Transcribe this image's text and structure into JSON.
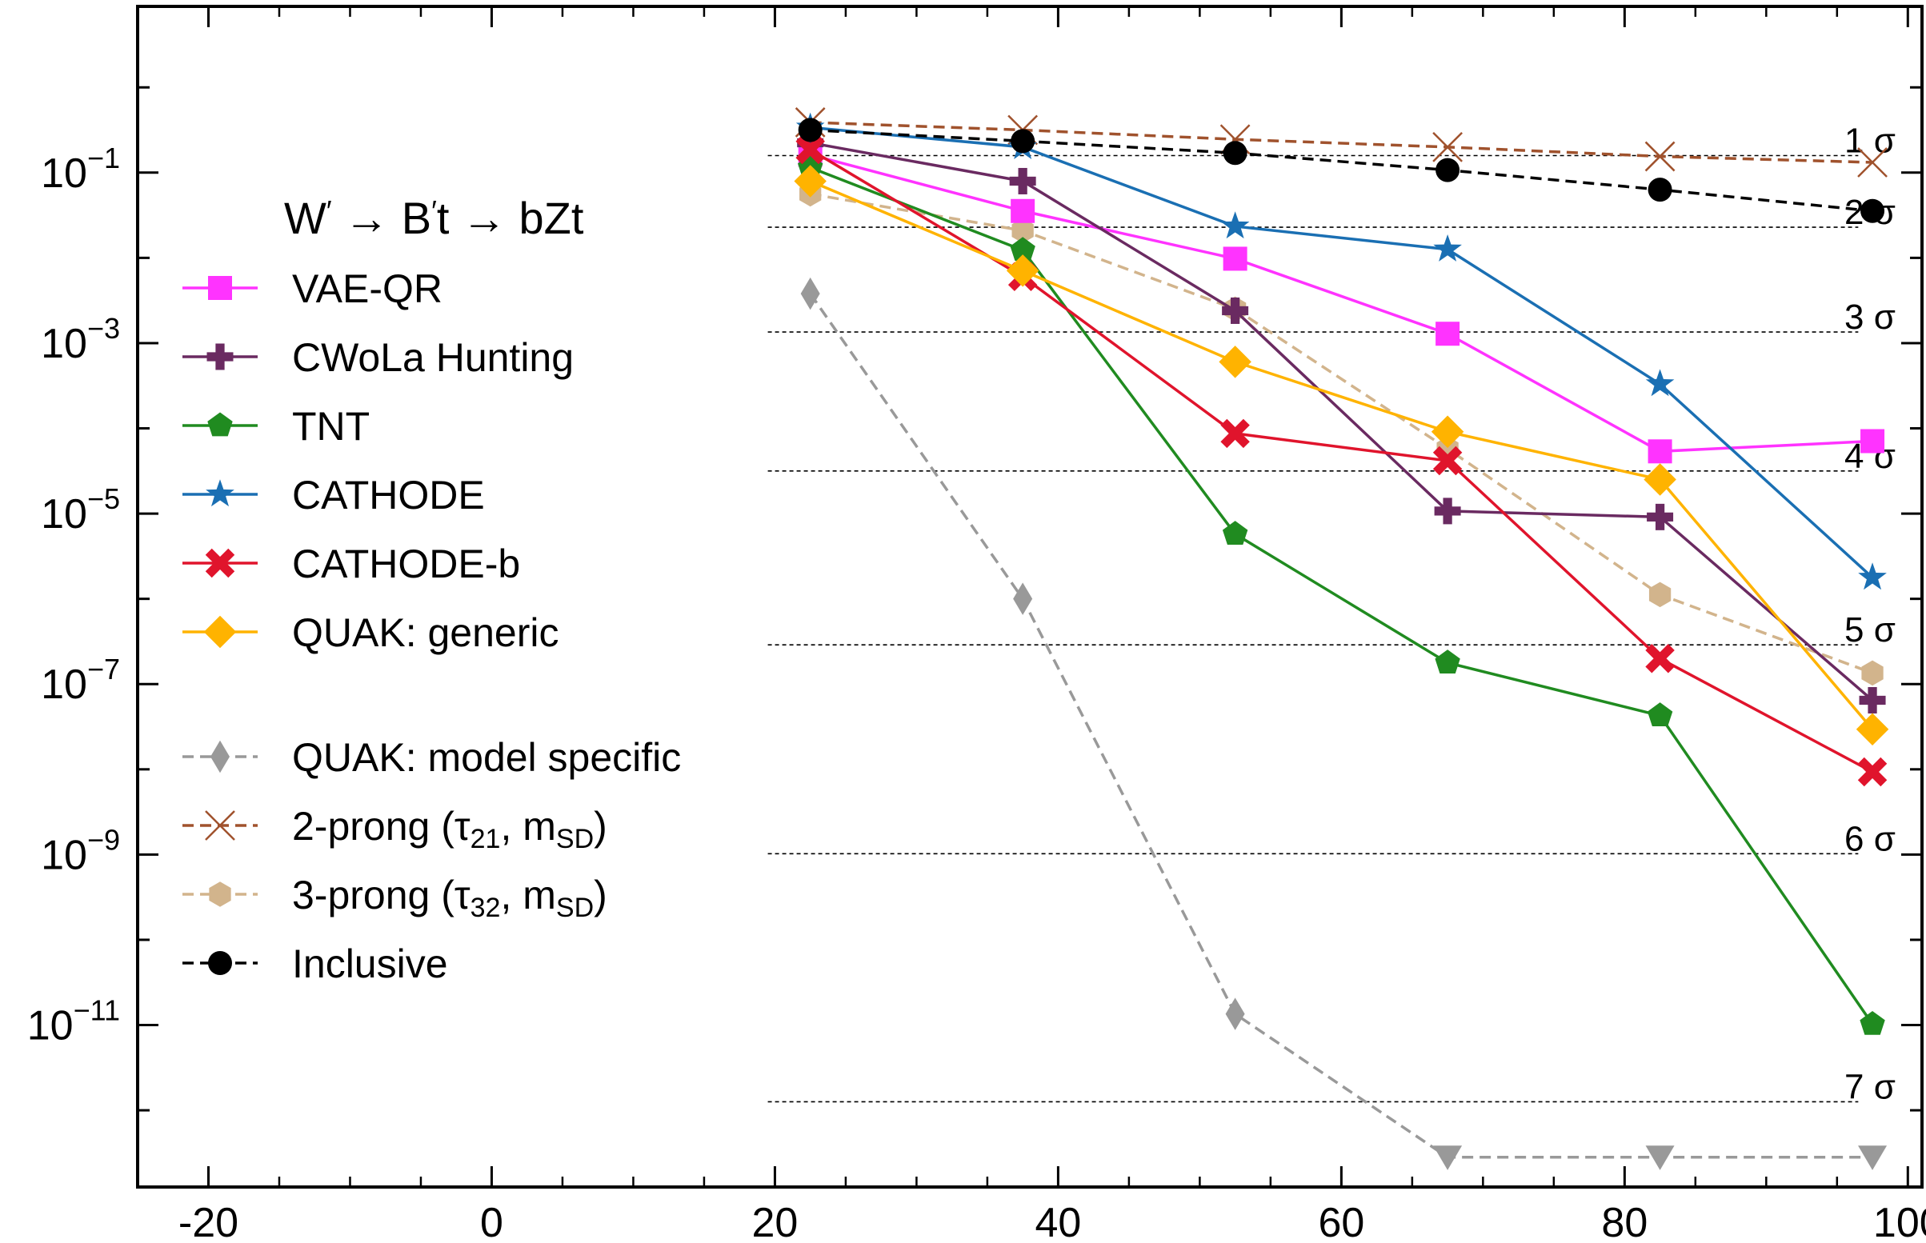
{
  "chart_data": {
    "type": "line",
    "title": "W′ → B′t → bZt",
    "title_parts": [
      "W",
      "′",
      " → B",
      "′",
      "t → bZt"
    ],
    "xlabel": "",
    "ylabel": "",
    "xlim": [
      -25,
      101
    ],
    "ylim_log10": [
      -12.9,
      0.95
    ],
    "y_scale": "log",
    "x_ticks": [
      -20,
      0,
      20,
      40,
      60,
      80,
      100
    ],
    "x_tick_labels": [
      "-20",
      "0",
      "20",
      "40",
      "60",
      "80",
      "100"
    ],
    "y_ticks_log10": [
      -1,
      -3,
      -5,
      -7,
      -9,
      -11
    ],
    "y_tick_labels": [
      {
        "base": "10",
        "exp": "−1"
      },
      {
        "base": "10",
        "exp": "−3"
      },
      {
        "base": "10",
        "exp": "−5"
      },
      {
        "base": "10",
        "exp": "−7"
      },
      {
        "base": "10",
        "exp": "−9"
      },
      {
        "base": "10",
        "exp": "−11"
      }
    ],
    "significance_lines": [
      {
        "label": "1 σ",
        "log10_p": -0.8
      },
      {
        "label": "2 σ",
        "log10_p": -1.64
      },
      {
        "label": "3 σ",
        "log10_p": -2.87
      },
      {
        "label": "4 σ",
        "log10_p": -4.5
      },
      {
        "label": "5 σ",
        "log10_p": -6.54
      },
      {
        "label": "6 σ",
        "log10_p": -8.99
      },
      {
        "label": "7 σ",
        "log10_p": -11.9
      }
    ],
    "x": [
      22.5,
      37.5,
      52.5,
      67.5,
      82.5,
      97.5
    ],
    "series": [
      {
        "name": "VAE-QR",
        "color": "#ff33ff",
        "marker": "square",
        "dashed": false,
        "legend_gap": false,
        "log10_values": [
          -0.79,
          -1.45,
          -2.01,
          -2.89,
          -4.27,
          -4.15
        ],
        "upper_limit": []
      },
      {
        "name": "CWoLa Hunting",
        "color": "#6a2a61",
        "marker": "plus",
        "dashed": false,
        "legend_gap": false,
        "log10_values": [
          -0.65,
          -1.1,
          -2.62,
          -4.97,
          -5.04,
          -7.19
        ],
        "upper_limit": []
      },
      {
        "name": "TNT",
        "color": "#208b20",
        "marker": "pentagon",
        "dashed": false,
        "legend_gap": false,
        "log10_values": [
          -0.94,
          -1.91,
          -5.24,
          -6.75,
          -7.37,
          -10.99
        ],
        "upper_limit": []
      },
      {
        "name": "CATHODE",
        "color": "#1a6fb3",
        "marker": "star",
        "dashed": false,
        "legend_gap": false,
        "log10_values": [
          -0.47,
          -0.7,
          -1.63,
          -1.9,
          -3.48,
          -5.75
        ],
        "upper_limit": []
      },
      {
        "name": "CATHODE-b",
        "color": "#e0142c",
        "marker": "xthick",
        "dashed": false,
        "legend_gap": false,
        "log10_values": [
          -0.73,
          -2.22,
          -4.06,
          -4.38,
          -6.7,
          -8.03
        ],
        "upper_limit": []
      },
      {
        "name": "QUAK: generic",
        "color": "#ffb300",
        "marker": "diamond",
        "dashed": false,
        "legend_gap": false,
        "log10_values": [
          -1.1,
          -2.15,
          -3.22,
          -4.04,
          -4.6,
          -7.53
        ],
        "upper_limit": []
      },
      {
        "name": "QUAK: model specific",
        "color": "#999999",
        "marker": "thin_diamond",
        "dashed": true,
        "legend_gap": true,
        "log10_values": [
          -2.42,
          -6.0,
          -10.87,
          -12.55,
          -12.55,
          -12.55
        ],
        "upper_limit": [
          3,
          4,
          5
        ]
      },
      {
        "name": "2-prong (τ21, mSD)",
        "name_parts": {
          "pre": "2-prong (τ",
          "sub1": "21",
          "mid": ", m",
          "sub2": "SD",
          "post": ")"
        },
        "color": "#a0522d",
        "marker": "x",
        "dashed": true,
        "legend_gap": false,
        "log10_values": [
          -0.41,
          -0.5,
          -0.61,
          -0.7,
          -0.81,
          -0.88
        ],
        "upper_limit": []
      },
      {
        "name": "3-prong (τ32, mSD)",
        "name_parts": {
          "pre": "3-prong (τ",
          "sub1": "32",
          "mid": ", m",
          "sub2": "SD",
          "post": ")"
        },
        "color": "#d2b48c",
        "marker": "hexagon",
        "dashed": true,
        "legend_gap": false,
        "log10_values": [
          -1.25,
          -1.68,
          -2.6,
          -4.24,
          -5.95,
          -6.87
        ],
        "upper_limit": []
      },
      {
        "name": "Inclusive",
        "color": "#000000",
        "marker": "circle",
        "dashed": true,
        "legend_gap": false,
        "log10_values": [
          -0.5,
          -0.63,
          -0.77,
          -0.97,
          -1.2,
          -1.45
        ],
        "upper_limit": []
      }
    ],
    "grid": false,
    "legend_position": "left"
  }
}
